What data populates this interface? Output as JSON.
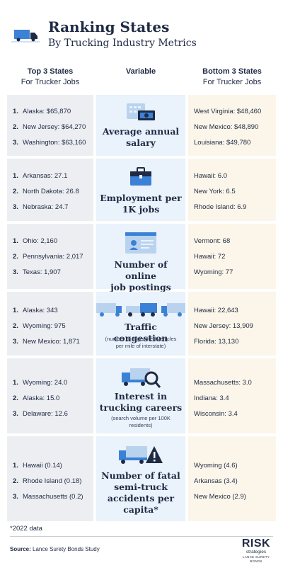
{
  "header": {
    "title": "Ranking States",
    "subtitle": "By Trucking Industry Metrics",
    "logo_icon": "truck-icon"
  },
  "columns": {
    "top_title": "Top 3 States",
    "top_sub": "For Trucker Jobs",
    "middle": "Variable",
    "bottom_title": "Bottom 3 States",
    "bottom_sub": "For Trucker Jobs"
  },
  "colors": {
    "left_bg": "#eceef1",
    "middle_bg": "#eaf2fb",
    "right_bg": "#fbf6e9",
    "accent_blue": "#3b82d6",
    "navy": "#1f2a44"
  },
  "rows": [
    {
      "icon": "salary-cash-icon",
      "title_lines": [
        "Average annual",
        "salary"
      ],
      "note_lines": [],
      "top": [
        {
          "rank": "1.",
          "text": "Alaska: $65,870"
        },
        {
          "rank": "2.",
          "text": "New Jersey: $64,270"
        },
        {
          "rank": "3.",
          "text": "Washington: $63,160"
        }
      ],
      "bottom": [
        "West Virginia: $48,460",
        "New Mexico: $48,890",
        "Louisiana: $49,780"
      ]
    },
    {
      "icon": "briefcase-icon",
      "title_lines": [
        "Employment per",
        "1K jobs"
      ],
      "note_lines": [],
      "top": [
        {
          "rank": "1.",
          "text": "Arkansas: 27.1"
        },
        {
          "rank": "2.",
          "text": "North Dakota: 26.8"
        },
        {
          "rank": "3.",
          "text": "Nebraska: 24.7"
        }
      ],
      "bottom": [
        "Hawaii: 6.0",
        "New York: 6.5",
        "Rhode Island: 6.9"
      ]
    },
    {
      "icon": "job-posting-icon",
      "title_lines": [
        "Number of online",
        "job postings"
      ],
      "note_lines": [],
      "top": [
        {
          "rank": "1.",
          "text": "Ohio: 2,160"
        },
        {
          "rank": "2.",
          "text": "Pennsylvania: 2,017"
        },
        {
          "rank": "3.",
          "text": "Texas: 1,907"
        }
      ],
      "bottom": [
        "Vermont: 68",
        "Hawaii: 72",
        "Wyoming: 77"
      ]
    },
    {
      "icon": "traffic-trucks-icon",
      "title_lines": [
        "Traffic congestion"
      ],
      "note_lines": [
        "(number of registered vehicles",
        "per mile of interstate)"
      ],
      "top": [
        {
          "rank": "1.",
          "text": "Alaska: 343"
        },
        {
          "rank": "2.",
          "text": "Wyoming: 975"
        },
        {
          "rank": "3.",
          "text": "New Mexico: 1,871"
        }
      ],
      "bottom": [
        "Hawaii: 22,643",
        "New Jersey: 13,909",
        "Florida: 13,130"
      ]
    },
    {
      "icon": "truck-search-icon",
      "title_lines": [
        "Interest in",
        "trucking careers"
      ],
      "note_lines": [
        "(search volume per 100K",
        "residents)"
      ],
      "top": [
        {
          "rank": "1.",
          "text": "Wyoming: 24.0"
        },
        {
          "rank": "2.",
          "text": "Alaska: 15.0"
        },
        {
          "rank": "3.",
          "text": "Delaware: 12.6"
        }
      ],
      "bottom": [
        "Massachusetts: 3.0",
        "Indiana: 3.4",
        "Wisconsin: 3.4"
      ]
    },
    {
      "icon": "truck-warning-icon",
      "title_lines": [
        "Number of fatal",
        "semi-truck",
        "accidents per",
        "capita*"
      ],
      "note_lines": [],
      "top": [
        {
          "rank": "1.",
          "text": "Hawaii (0.14)"
        },
        {
          "rank": "2.",
          "text": "Rhode Island (0.18)"
        },
        {
          "rank": "3.",
          "text": "Massachusetts (0.2)"
        }
      ],
      "bottom": [
        "Wyoming (4.6)",
        "Arkansas (3.4)",
        "New Mexico (2.9)"
      ]
    }
  ],
  "footer": {
    "footnote": "*2022 data",
    "source_label": "Source:",
    "source_text": "Lance Surety Bonds Study",
    "brand_main": "RISK",
    "brand_sub": "strategies",
    "brand_tag": "LANCE SURETY BONDS"
  }
}
